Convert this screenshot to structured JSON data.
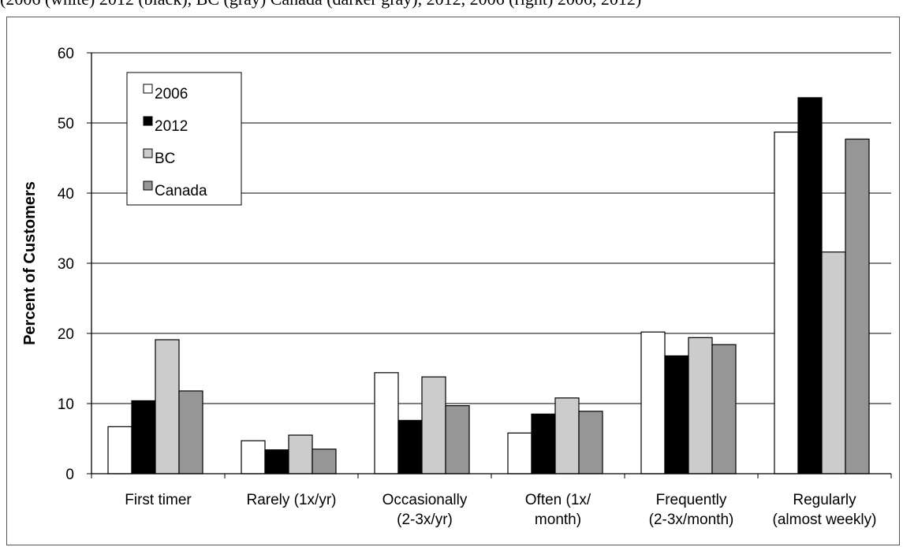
{
  "caption_fragment": "(2006 (white) 2012 (black), BC (gray) Canada (darker gray), 2012, 2006 (right) 2006, 2012)",
  "colors": {
    "2006": "#ffffff",
    "2012": "#000000",
    "BC": "#cccccc",
    "Canada": "#969696"
  },
  "chart_data": {
    "type": "bar",
    "title": "",
    "xlabel": "",
    "ylabel": "Percent of Customers",
    "ylim": [
      0,
      60
    ],
    "yticks": [
      "0",
      "10",
      "20",
      "30",
      "40",
      "50",
      "60"
    ],
    "grid": "horizontal",
    "legend_position": "top-left",
    "categories": [
      [
        "First timer"
      ],
      [
        "Rarely  (1x/yr)"
      ],
      [
        "Occasionally",
        "(2-3x/yr)"
      ],
      [
        "Often (1x/",
        "month)"
      ],
      [
        "Frequently",
        "(2-3x/month)"
      ],
      [
        "Regularly",
        "(almost weekly)"
      ]
    ],
    "series": [
      {
        "name": "2006",
        "values": [
          6.7,
          4.7,
          14.4,
          5.8,
          20.2,
          48.7
        ]
      },
      {
        "name": "2012",
        "values": [
          10.4,
          3.4,
          7.6,
          8.5,
          16.8,
          53.6
        ]
      },
      {
        "name": "BC",
        "values": [
          19.1,
          5.5,
          13.8,
          10.8,
          19.4,
          31.6
        ]
      },
      {
        "name": "Canada",
        "values": [
          11.8,
          3.5,
          9.7,
          8.9,
          18.4,
          47.7
        ]
      }
    ]
  }
}
